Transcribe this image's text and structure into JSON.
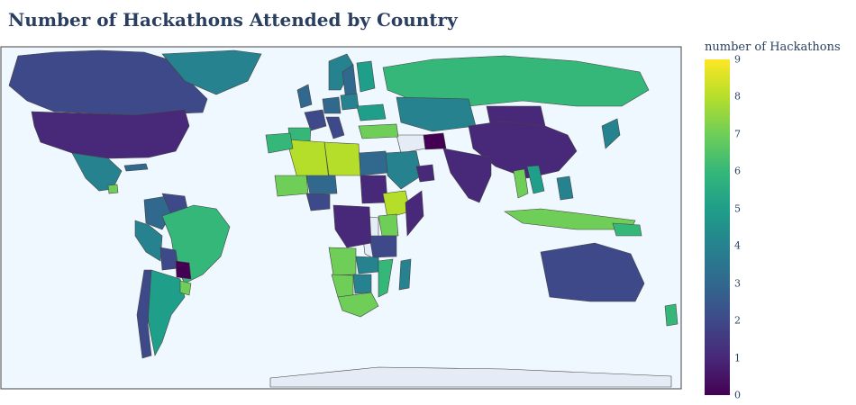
{
  "title": "Number of Hackathons Attended by Country",
  "colorbar": {
    "title": "number of Hackathons",
    "ticks": [
      "0",
      "1",
      "2",
      "3",
      "4",
      "5",
      "6",
      "7",
      "8",
      "9"
    ],
    "scale": [
      "#440154",
      "#482878",
      "#3e4989",
      "#31688e",
      "#26828e",
      "#1f9e89",
      "#35b779",
      "#6ece58",
      "#b5de2b",
      "#fde725"
    ]
  },
  "colors": {
    "ocean": "#f0f8ff",
    "land_no_data": "#e5ecf6",
    "border": "#444444",
    "title_text": "#2a3f5f"
  },
  "chart_data": {
    "type": "choropleth",
    "projection": "equirectangular",
    "title": "Number of Hackathons Attended by Country",
    "colorbar_title": "number of Hackathons",
    "color_range": [
      0,
      9
    ],
    "colorscale": "Viridis",
    "regions": [
      {
        "name": "Canada",
        "value": 2
      },
      {
        "name": "United States",
        "value": 1
      },
      {
        "name": "Greenland",
        "value": 4
      },
      {
        "name": "Mexico",
        "value": 4
      },
      {
        "name": "Guatemala",
        "value": 7
      },
      {
        "name": "Cuba",
        "value": 3
      },
      {
        "name": "Colombia",
        "value": 3
      },
      {
        "name": "Venezuela",
        "value": 2
      },
      {
        "name": "Brazil",
        "value": 6
      },
      {
        "name": "Peru",
        "value": 4
      },
      {
        "name": "Bolivia",
        "value": 2
      },
      {
        "name": "Paraguay",
        "value": 0
      },
      {
        "name": "Argentina",
        "value": 5
      },
      {
        "name": "Chile",
        "value": 2
      },
      {
        "name": "Uruguay",
        "value": 7
      },
      {
        "name": "Russia",
        "value": 6
      },
      {
        "name": "Norway",
        "value": 4
      },
      {
        "name": "Sweden",
        "value": 3
      },
      {
        "name": "Finland",
        "value": 5
      },
      {
        "name": "United Kingdom",
        "value": 3
      },
      {
        "name": "France",
        "value": 2
      },
      {
        "name": "Spain",
        "value": 6
      },
      {
        "name": "Germany",
        "value": 3
      },
      {
        "name": "Italy",
        "value": 2
      },
      {
        "name": "Poland",
        "value": 4
      },
      {
        "name": "Ukraine",
        "value": 5
      },
      {
        "name": "Turkey",
        "value": 7
      },
      {
        "name": "Kazakhstan",
        "value": 4
      },
      {
        "name": "Mongolia",
        "value": 1
      },
      {
        "name": "China",
        "value": 1
      },
      {
        "name": "Afghanistan",
        "value": 0
      },
      {
        "name": "India",
        "value": 1
      },
      {
        "name": "Thailand",
        "value": 7
      },
      {
        "name": "Vietnam",
        "value": 5
      },
      {
        "name": "Indonesia",
        "value": 7
      },
      {
        "name": "Philippines",
        "value": 4
      },
      {
        "name": "Japan",
        "value": 4
      },
      {
        "name": "Saudi Arabia",
        "value": 4
      },
      {
        "name": "Oman",
        "value": 1
      },
      {
        "name": "Egypt",
        "value": 3
      },
      {
        "name": "Libya",
        "value": 8
      },
      {
        "name": "Algeria",
        "value": 8
      },
      {
        "name": "Morocco",
        "value": 6
      },
      {
        "name": "Mali",
        "value": 7
      },
      {
        "name": "Niger",
        "value": 3
      },
      {
        "name": "Nigeria",
        "value": 2
      },
      {
        "name": "Sudan",
        "value": 1
      },
      {
        "name": "Ethiopia",
        "value": 8
      },
      {
        "name": "Kenya",
        "value": 7
      },
      {
        "name": "Somalia",
        "value": 1
      },
      {
        "name": "Tanzania",
        "value": 2
      },
      {
        "name": "Congo (DRC)",
        "value": 1
      },
      {
        "name": "Angola",
        "value": 7
      },
      {
        "name": "Zambia",
        "value": 4
      },
      {
        "name": "Namibia",
        "value": 7
      },
      {
        "name": "Botswana",
        "value": 4
      },
      {
        "name": "South Africa",
        "value": 7
      },
      {
        "name": "Mozambique",
        "value": 6
      },
      {
        "name": "Madagascar",
        "value": 4
      },
      {
        "name": "Australia",
        "value": 2
      },
      {
        "name": "New Zealand",
        "value": 6
      },
      {
        "name": "Papua New Guinea",
        "value": 6
      }
    ]
  }
}
